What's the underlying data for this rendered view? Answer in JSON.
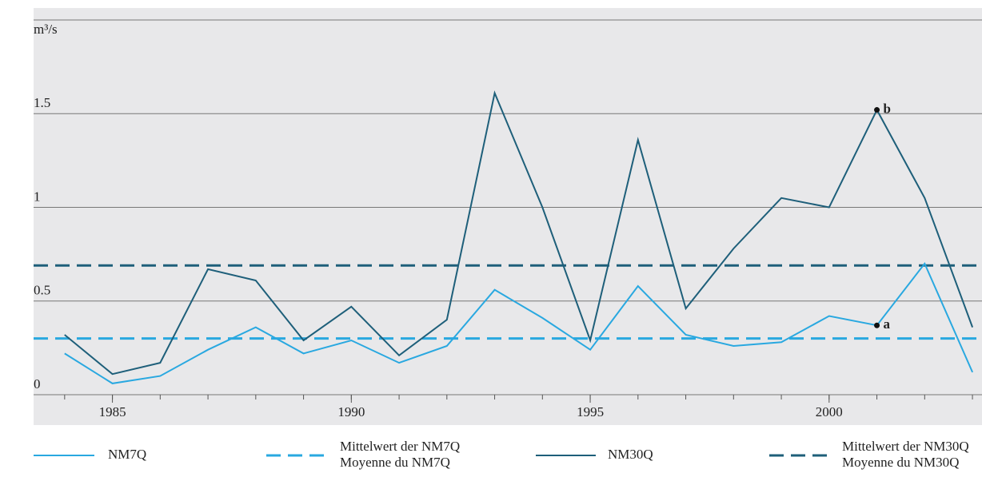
{
  "chart_data": {
    "type": "line",
    "ylabel": "m³/s",
    "x": [
      1984,
      1985,
      1986,
      1987,
      1988,
      1989,
      1990,
      1991,
      1992,
      1993,
      1994,
      1995,
      1996,
      1997,
      1998,
      1999,
      2000,
      2001,
      2002,
      2003
    ],
    "series": [
      {
        "name": "NM7Q",
        "color": "#29a8e0",
        "values": [
          0.22,
          0.06,
          0.1,
          0.24,
          0.36,
          0.22,
          0.29,
          0.17,
          0.26,
          0.56,
          0.41,
          0.24,
          0.58,
          0.32,
          0.26,
          0.28,
          0.42,
          0.37,
          0.7,
          0.12
        ]
      },
      {
        "name": "NM30Q",
        "color": "#1e5f7a",
        "values": [
          0.32,
          0.11,
          0.17,
          0.67,
          0.61,
          0.29,
          0.47,
          0.21,
          0.4,
          1.61,
          1.0,
          0.29,
          1.36,
          0.46,
          0.78,
          1.05,
          1.0,
          1.52,
          1.05,
          0.36
        ]
      }
    ],
    "means": [
      {
        "name": [
          "Mittelwert der NM7Q",
          "Moyenne du NM7Q"
        ],
        "color": "#29a8e0",
        "value": 0.3
      },
      {
        "name": [
          "Mittelwert der NM30Q",
          "Moyenne du NM30Q"
        ],
        "color": "#1e5f7a",
        "value": 0.69
      }
    ],
    "annotations": [
      {
        "text": "a",
        "x": 2001,
        "y": 0.37
      },
      {
        "text": "b",
        "x": 2001,
        "y": 1.52
      }
    ],
    "xlim": [
      1983.35,
      2003.2
    ],
    "xticks": [
      1985,
      1990,
      1995,
      2000
    ],
    "xminorticks": [
      1984,
      1985,
      1986,
      1987,
      1988,
      1989,
      1990,
      1991,
      1992,
      1993,
      1994,
      1995,
      1996,
      1997,
      1998,
      1999,
      2000,
      2001,
      2002,
      2003
    ],
    "ylim": [
      0,
      2
    ],
    "yticks": [
      0,
      0.5,
      1,
      1.5
    ],
    "grid": true
  }
}
